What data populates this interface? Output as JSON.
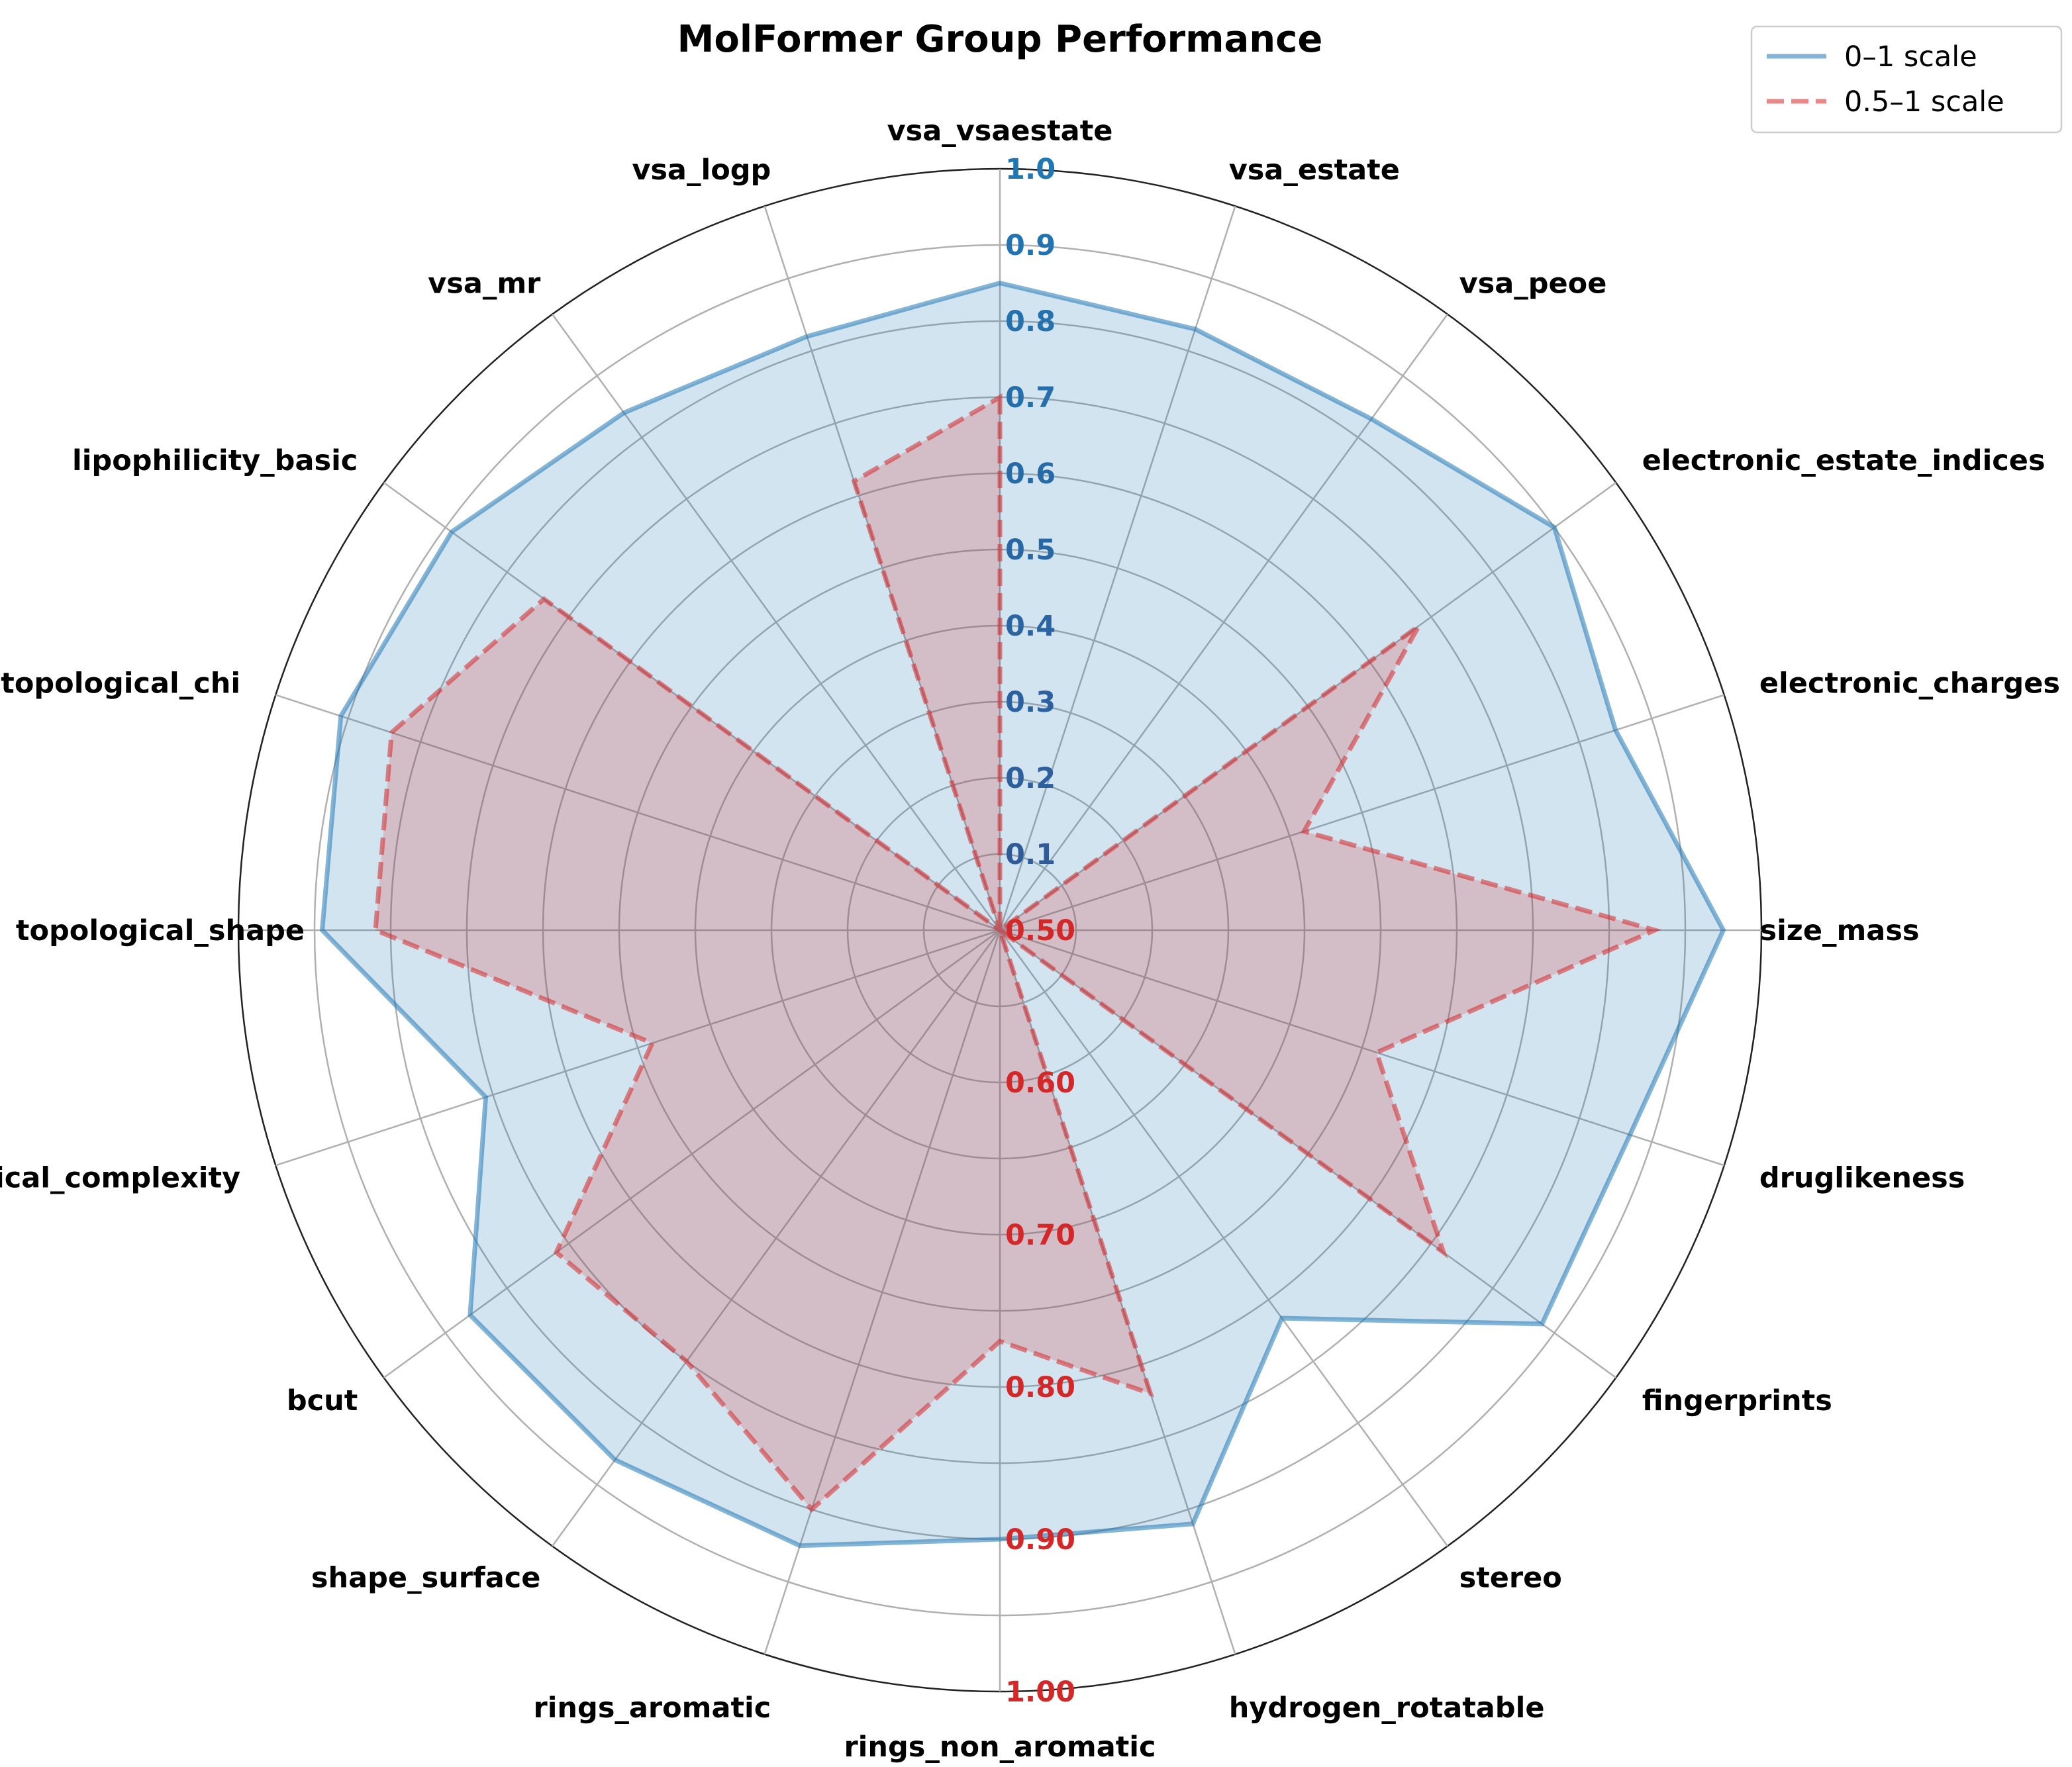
{
  "chart_data": {
    "type": "radar",
    "title": "MolFormer Group Performance",
    "categories": [
      "vsa_vsaestate",
      "vsa_estate",
      "vsa_peoe",
      "electronic_estate_indices",
      "electronic_charges",
      "size_mass",
      "druglikeness",
      "fingerprints",
      "stereo",
      "hydrogen_rotatable",
      "rings_non_aromatic",
      "rings_aromatic",
      "shape_surface",
      "bcut",
      "topological_complexity",
      "topological_shape",
      "topological_chi",
      "lipophilicity_basic",
      "vsa_mr",
      "vsa_logp"
    ],
    "legend": {
      "position": "top-right",
      "labels": [
        "0–1 scale",
        "0.5–1 scale"
      ]
    },
    "series": [
      {
        "name": "0–1 scale",
        "scale_range": [
          0,
          1
        ],
        "color": "#1f77b4",
        "line_style": "solid",
        "values": [
          0.85,
          0.83,
          0.83,
          0.9,
          0.85,
          0.95,
          0.87,
          0.88,
          0.63,
          0.82,
          0.8,
          0.85,
          0.86,
          0.86,
          0.71,
          0.89,
          0.91,
          0.89,
          0.84,
          0.82
        ]
      },
      {
        "name": "0.5–1 scale",
        "scale_range": [
          0.5,
          1
        ],
        "color": "#d62728",
        "line_style": "dashed",
        "values": [
          0.85,
          0.5,
          0.5,
          0.84,
          0.71,
          0.93,
          0.76,
          0.86,
          0.5,
          0.82,
          0.77,
          0.9,
          0.85,
          0.86,
          0.74,
          0.91,
          0.92,
          0.87,
          0.5,
          0.81
        ]
      }
    ],
    "radial_ticks_0_1": [
      "0.1",
      "0.2",
      "0.3",
      "0.4",
      "0.5",
      "0.6",
      "0.7",
      "0.8",
      "0.9",
      "1.0"
    ],
    "radial_ticks_05_1": [
      "0.50",
      "0.60",
      "0.70",
      "0.80",
      "0.90",
      "1.00"
    ],
    "grid": true,
    "tick_colors": {
      "upper_start": "#1f77b4",
      "upper_end": "#2f5b9a",
      "lower": "#d62728"
    }
  }
}
